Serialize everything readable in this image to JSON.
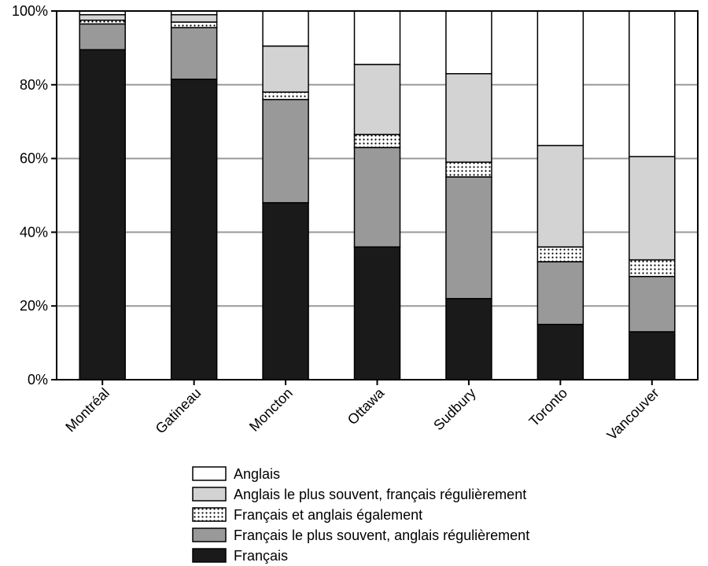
{
  "chart_data": {
    "type": "bar",
    "stacked": true,
    "grid": true,
    "legend_position": "bottom",
    "xlabel": "",
    "ylabel": "",
    "ylim": [
      0,
      100
    ],
    "yticks": [
      "0%",
      "20%",
      "40%",
      "60%",
      "80%",
      "100%"
    ],
    "categories": [
      "Montréal",
      "Gatineau",
      "Moncton",
      "Ottawa",
      "Sudbury",
      "Toronto",
      "Vancouver"
    ],
    "series": [
      {
        "name": "Français",
        "color": "#1a1a1a",
        "pattern": "solid",
        "values": [
          89.5,
          81.5,
          48,
          36,
          22,
          15,
          13
        ]
      },
      {
        "name": "Français le plus souvent, anglais régulièrement",
        "color": "#999999",
        "pattern": "solid",
        "values": [
          7,
          14,
          28,
          27,
          33,
          17,
          15
        ]
      },
      {
        "name": "Français et anglais également",
        "color": "#ffffff",
        "pattern": "dots",
        "values": [
          1,
          1.5,
          2,
          3.5,
          4,
          4,
          4.5
        ]
      },
      {
        "name": "Anglais le plus souvent, français régulièrement",
        "color": "#d3d3d3",
        "pattern": "solid",
        "values": [
          1.5,
          2,
          12.5,
          19,
          24,
          27.5,
          28
        ]
      },
      {
        "name": "Anglais",
        "color": "#ffffff",
        "pattern": "solid",
        "values": [
          1,
          1,
          9.5,
          14.5,
          17,
          36.5,
          39.5
        ]
      }
    ],
    "legend_order": [
      "Anglais",
      "Anglais le plus souvent, français régulièrement",
      "Français et anglais également",
      "Français le plus souvent, anglais régulièrement",
      "Français"
    ]
  }
}
